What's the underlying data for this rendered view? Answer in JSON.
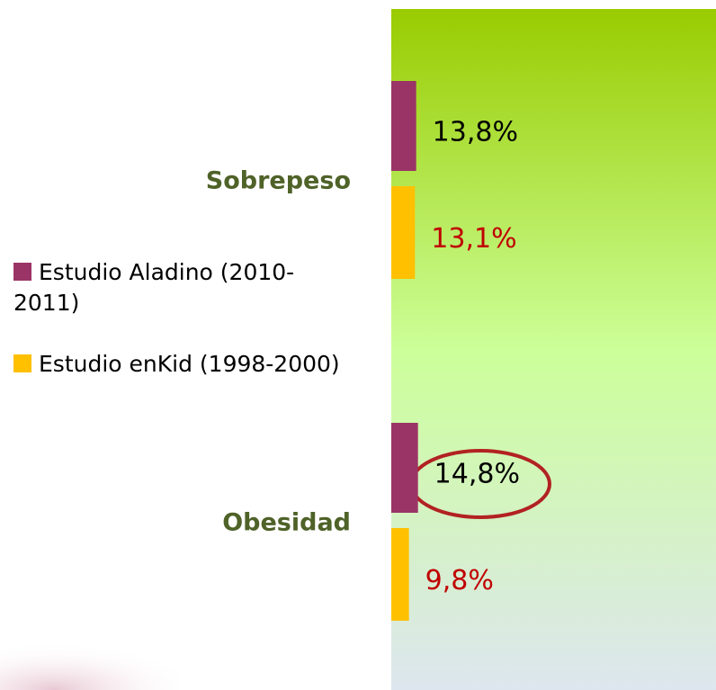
{
  "chart_data": {
    "type": "barh",
    "categories": [
      "Sobrepeso",
      "Obesidad"
    ],
    "series": [
      {
        "name": "Estudio Aladino (2010-2011)",
        "color": "#9b3466",
        "label_color": "#000000",
        "values": [
          13.8,
          14.8
        ],
        "value_labels": [
          "13,8%",
          "14,8%"
        ]
      },
      {
        "name": "Estudio enKid (1998-2000)",
        "color": "#ffc000",
        "label_color": "#c00000",
        "values": [
          13.1,
          9.8
        ],
        "value_labels": [
          "13,1%",
          "9,8%"
        ]
      }
    ],
    "xlim": [
      0,
      180
    ],
    "category_color": "#4f6228"
  }
}
